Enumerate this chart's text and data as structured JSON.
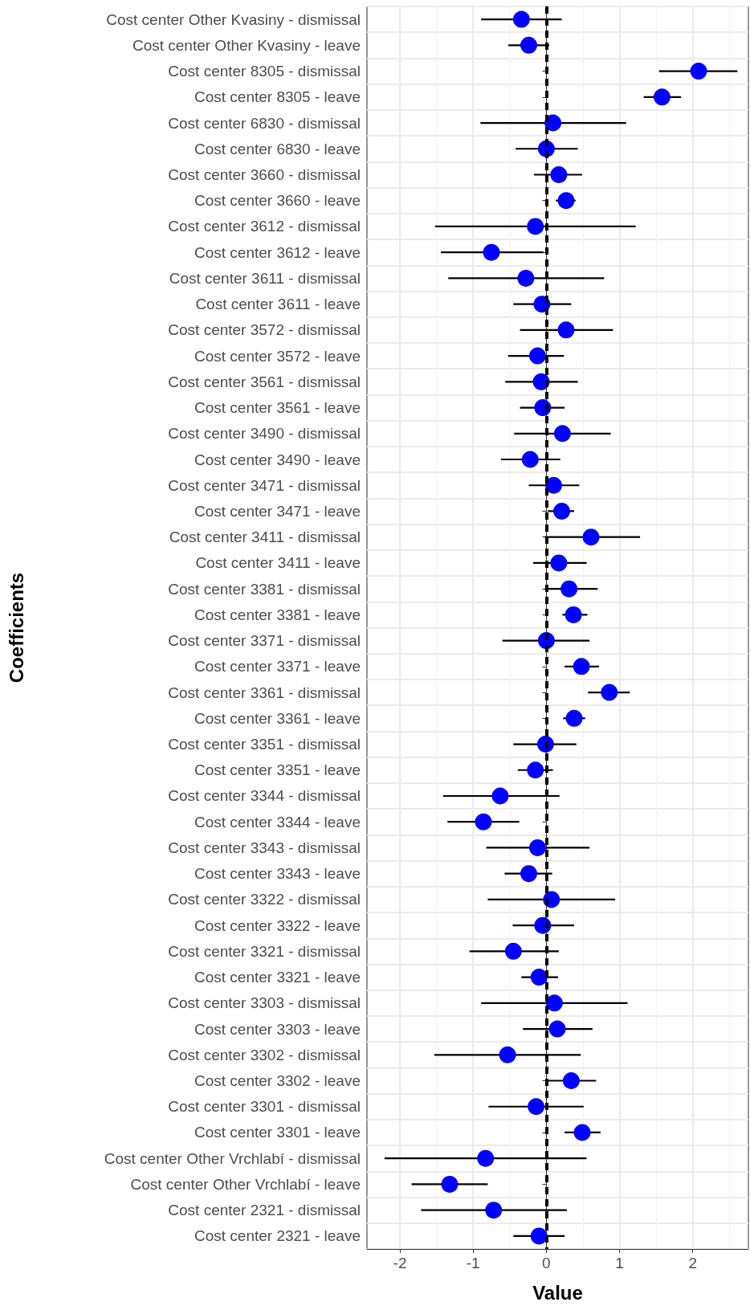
{
  "chart_data": {
    "type": "scatter",
    "orientation": "horizontal",
    "xlabel": "Value",
    "ylabel": "Coefficients",
    "categories": [
      "Cost center Other Kvasiny - dismissal",
      "Cost center Other Kvasiny - leave",
      "Cost center 8305 - dismissal",
      "Cost center 8305 - leave",
      "Cost center 6830 - dismissal",
      "Cost center 6830 - leave",
      "Cost center 3660 - dismissal",
      "Cost center 3660 - leave",
      "Cost center 3612 - dismissal",
      "Cost center 3612 - leave",
      "Cost center 3611 - dismissal",
      "Cost center 3611 - leave",
      "Cost center 3572 - dismissal",
      "Cost center 3572 - leave",
      "Cost center 3561 - dismissal",
      "Cost center 3561 - leave",
      "Cost center 3490 - dismissal",
      "Cost center 3490 - leave",
      "Cost center 3471 - dismissal",
      "Cost center 3471 - leave",
      "Cost center 3411 - dismissal",
      "Cost center 3411 - leave",
      "Cost center 3381 - dismissal",
      "Cost center 3381 - leave",
      "Cost center 3371 - dismissal",
      "Cost center 3371 - leave",
      "Cost center 3361 - dismissal",
      "Cost center 3361 - leave",
      "Cost center 3351 - dismissal",
      "Cost center 3351 - leave",
      "Cost center 3344 - dismissal",
      "Cost center 3344 - leave",
      "Cost center 3343 - dismissal",
      "Cost center 3343 - leave",
      "Cost center 3322 - dismissal",
      "Cost center 3322 - leave",
      "Cost center 3321 - dismissal",
      "Cost center 3321 - leave",
      "Cost center 3303 - dismissal",
      "Cost center 3303 - leave",
      "Cost center 3302 - dismissal",
      "Cost center 3302 - leave",
      "Cost center 3301 - dismissal",
      "Cost center 3301 - leave",
      "Cost center Other Vrchlabí - dismissal",
      "Cost center Other Vrchlabí - leave",
      "Cost center 2321 - dismissal",
      "Cost center 2321 - leave"
    ],
    "series": [
      {
        "color": "#0000ff",
        "values": [
          -0.34,
          -0.24,
          2.08,
          1.58,
          0.09,
          0.0,
          0.17,
          0.27,
          -0.15,
          -0.75,
          -0.28,
          -0.06,
          0.27,
          -0.12,
          -0.07,
          -0.05,
          0.22,
          -0.22,
          0.1,
          0.21,
          0.61,
          0.17,
          0.31,
          0.37,
          0.0,
          0.48,
          0.86,
          0.38,
          -0.01,
          -0.15,
          -0.63,
          -0.86,
          -0.12,
          -0.24,
          0.07,
          -0.05,
          -0.45,
          -0.1,
          0.11,
          0.15,
          -0.53,
          0.34,
          -0.14,
          0.49,
          -0.83,
          -1.32,
          -0.72,
          -0.1
        ],
        "errors": [
          [
            -0.89,
            0.21
          ],
          [
            -0.52,
            0.04
          ],
          [
            1.54,
            2.61
          ],
          [
            1.33,
            1.84
          ],
          [
            -0.9,
            1.09
          ],
          [
            -0.42,
            0.43
          ],
          [
            -0.17,
            0.49
          ],
          [
            0.13,
            0.4
          ],
          [
            -1.52,
            1.22
          ],
          [
            -1.44,
            -0.04
          ],
          [
            -1.34,
            0.79
          ],
          [
            -0.45,
            0.34
          ],
          [
            -0.36,
            0.91
          ],
          [
            -0.52,
            0.24
          ],
          [
            -0.56,
            0.43
          ],
          [
            -0.36,
            0.25
          ],
          [
            -0.44,
            0.88
          ],
          [
            -0.62,
            0.19
          ],
          [
            -0.24,
            0.45
          ],
          [
            0.02,
            0.38
          ],
          [
            -0.02,
            1.28
          ],
          [
            -0.18,
            0.55
          ],
          [
            -0.02,
            0.7
          ],
          [
            0.22,
            0.56
          ],
          [
            -0.6,
            0.59
          ],
          [
            0.25,
            0.72
          ],
          [
            0.57,
            1.14
          ],
          [
            0.23,
            0.53
          ],
          [
            -0.45,
            0.41
          ],
          [
            -0.39,
            0.09
          ],
          [
            -1.41,
            0.18
          ],
          [
            -1.35,
            -0.37
          ],
          [
            -0.82,
            0.59
          ],
          [
            -0.57,
            0.08
          ],
          [
            -0.8,
            0.94
          ],
          [
            -0.46,
            0.38
          ],
          [
            -1.05,
            0.17
          ],
          [
            -0.34,
            0.16
          ],
          [
            -0.89,
            1.11
          ],
          [
            -0.32,
            0.63
          ],
          [
            -1.53,
            0.47
          ],
          [
            0.02,
            0.68
          ],
          [
            -0.79,
            0.51
          ],
          [
            0.25,
            0.74
          ],
          [
            -2.21,
            0.55
          ],
          [
            -1.84,
            -0.8
          ],
          [
            -1.71,
            0.28
          ],
          [
            -0.45,
            0.25
          ]
        ]
      }
    ],
    "xlim": [
      -2.45,
      2.76
    ],
    "xticks": [
      -2,
      -1,
      0,
      1,
      2
    ],
    "ref_lines": [
      {
        "axis": "x",
        "value": 0,
        "color": "#000000",
        "line_style": "dashed"
      }
    ],
    "grid": true,
    "marker": "circle"
  }
}
